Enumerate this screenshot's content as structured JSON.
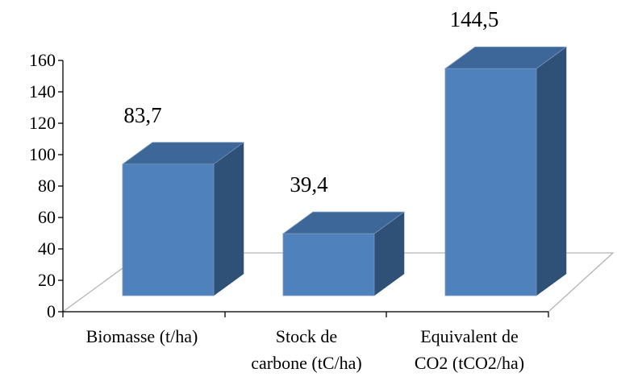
{
  "chart_data": {
    "type": "bar",
    "style": "3d-column",
    "categories": [
      [
        "Biomasse (t/ha)"
      ],
      [
        "Stock de",
        "carbone (tC/ha)"
      ],
      [
        "Equivalent de",
        "CO2 (tCO2/ha)"
      ]
    ],
    "values": [
      83.7,
      39.4,
      144.5
    ],
    "data_labels": [
      "83,7",
      "39,4",
      "144,5"
    ],
    "y_ticks": [
      "0",
      "20",
      "40",
      "60",
      "80",
      "100",
      "120",
      "140",
      "160"
    ],
    "ylim": [
      0,
      160
    ],
    "grid": false,
    "legend": "none",
    "colors": {
      "front": "#4f81bd",
      "side": "#2f5178",
      "top": "#3c6798",
      "edge": "#7a96bf",
      "axis": "#000000",
      "floor": "#b3b3b3"
    }
  }
}
